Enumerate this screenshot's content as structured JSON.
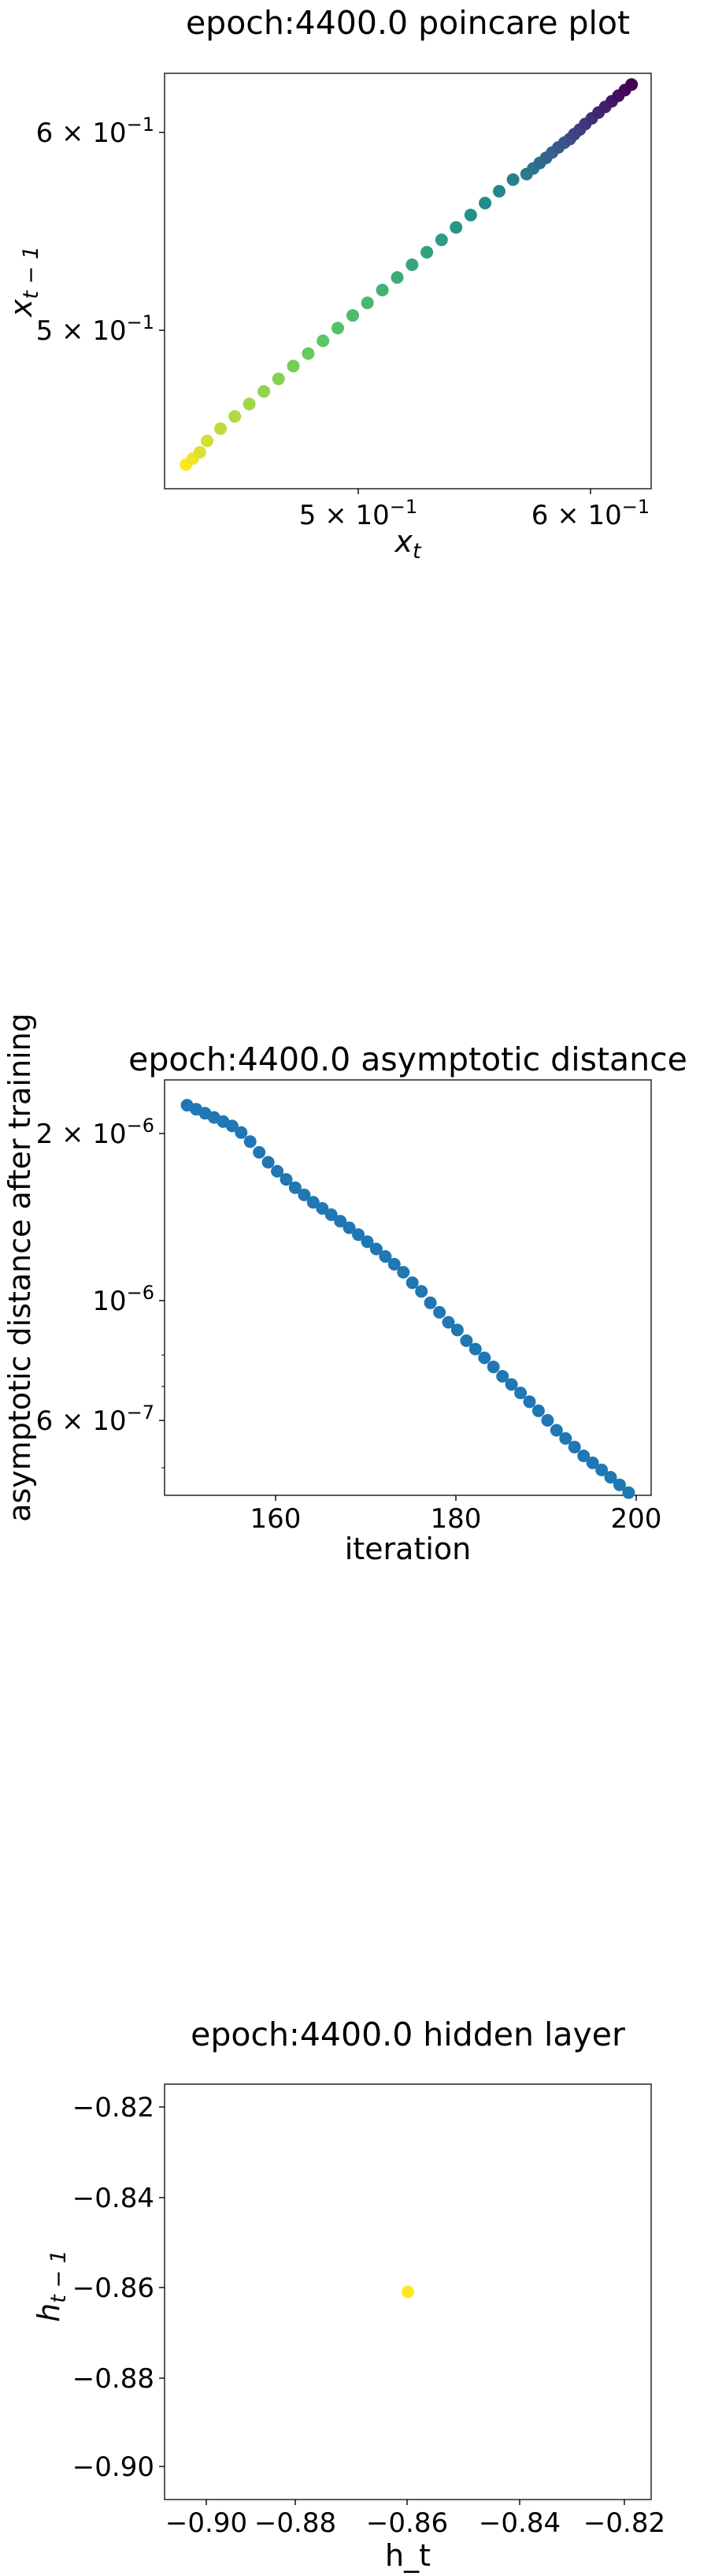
{
  "chart_data": [
    {
      "type": "scatter",
      "title": "epoch:4400.0 poincare plot",
      "xlabel": "x_t",
      "ylabel": "x_{t-1}",
      "xscale": "log",
      "yscale": "log",
      "xlim": [
        0.436,
        0.632
      ],
      "ylim": [
        0.436,
        0.632
      ],
      "xticks": [
        {
          "value": 0.5,
          "base": "5",
          "exp": "−1"
        },
        {
          "value": 0.6,
          "base": "6",
          "exp": "−1"
        }
      ],
      "yticks": [
        {
          "value": 0.5,
          "base": "5",
          "exp": "−1"
        },
        {
          "value": 0.6,
          "base": "6",
          "exp": "−1"
        }
      ],
      "colormap": "viridis",
      "grid": false,
      "x": [
        0.4432,
        0.4455,
        0.4479,
        0.4504,
        0.455,
        0.46,
        0.4651,
        0.4703,
        0.4756,
        0.481,
        0.4865,
        0.492,
        0.4976,
        0.5033,
        0.509,
        0.5148,
        0.5207,
        0.5266,
        0.5326,
        0.5386,
        0.5446,
        0.5507,
        0.5568,
        0.5628,
        0.5688,
        0.5747,
        0.5776,
        0.5805,
        0.5833,
        0.586,
        0.5888,
        0.5915,
        0.594,
        0.596,
        0.5985,
        0.601,
        0.604,
        0.6071,
        0.6102,
        0.6133,
        0.6164,
        0.6195,
        0.6226
      ],
      "y": [
        0.4455,
        0.4479,
        0.4504,
        0.455,
        0.46,
        0.4651,
        0.4703,
        0.4756,
        0.481,
        0.4865,
        0.492,
        0.4976,
        0.5033,
        0.509,
        0.5148,
        0.5207,
        0.5266,
        0.5326,
        0.5386,
        0.5446,
        0.5507,
        0.5568,
        0.5628,
        0.5688,
        0.5747,
        0.5776,
        0.5805,
        0.5833,
        0.586,
        0.5888,
        0.5915,
        0.594,
        0.596,
        0.5985,
        0.601,
        0.604,
        0.6071,
        0.6102,
        0.6133,
        0.6164,
        0.6195,
        0.6226,
        0.6257
      ]
    },
    {
      "type": "scatter",
      "title": "epoch:4400.0 asymptotic distance",
      "xlabel": "iteration",
      "ylabel": "asymptotic distance after training",
      "yscale": "log",
      "xlim": [
        147.5,
        201.5
      ],
      "ylim": [
        4.3e-07,
        2.6e-06
      ],
      "xticks": [
        160,
        180,
        200
      ],
      "yticks": [
        {
          "value": 2e-06,
          "base": "2",
          "exp": "−6"
        },
        {
          "value": 1e-06,
          "base": "10",
          "exp": "−6",
          "nobase": true
        },
        {
          "value": 6e-07,
          "base": "6",
          "exp": "−7"
        }
      ],
      "color": "#1f77b4",
      "grid": false,
      "x": [
        150,
        151,
        152,
        153,
        154,
        155,
        156,
        157,
        158,
        159,
        160,
        161,
        162,
        163,
        164,
        165,
        166,
        167,
        168,
        169,
        170,
        171,
        172,
        173,
        174,
        175,
        176,
        177,
        178,
        179,
        180,
        181,
        182,
        183,
        184,
        185,
        186,
        187,
        188,
        189,
        190,
        191,
        192,
        193,
        194,
        195,
        196,
        197,
        198,
        199
      ],
      "y": [
        2.33e-06,
        2.29e-06,
        2.25e-06,
        2.21e-06,
        2.17e-06,
        2.13e-06,
        2.07e-06,
        1.99e-06,
        1.9e-06,
        1.82e-06,
        1.75e-06,
        1.69e-06,
        1.63e-06,
        1.58e-06,
        1.53e-06,
        1.49e-06,
        1.45e-06,
        1.41e-06,
        1.37e-06,
        1.33e-06,
        1.29e-06,
        1.25e-06,
        1.21e-06,
        1.17e-06,
        1.13e-06,
        1.08e-06,
        1.04e-06,
        9.9e-07,
        9.5e-07,
        9.1e-07,
        8.8e-07,
        8.4e-07,
        8.1e-07,
        7.8e-07,
        7.5e-07,
        7.2e-07,
        6.95e-07,
        6.7e-07,
        6.45e-07,
        6.2e-07,
        5.95e-07,
        5.7e-07,
        5.5e-07,
        5.3e-07,
        5.1e-07,
        4.95e-07,
        4.8e-07,
        4.65e-07,
        4.5e-07,
        4.35e-07
      ]
    },
    {
      "type": "scatter",
      "title": "epoch:4400.0 hidden layer",
      "xlabel": "h_t",
      "ylabel": "h_{t-1}",
      "xlim": [
        -0.9112,
        -0.8128
      ],
      "ylim": [
        -0.9112,
        -0.8128
      ],
      "xticks": [
        "−0.90",
        "−0.88",
        "−0.86",
        "−0.84",
        "−0.82"
      ],
      "yticks": [
        "−0.82",
        "−0.84",
        "−0.86",
        "−0.88",
        "−0.90"
      ],
      "color": "#fde725",
      "grid": false,
      "x": [
        -0.862
      ],
      "y": [
        -0.862
      ]
    }
  ]
}
